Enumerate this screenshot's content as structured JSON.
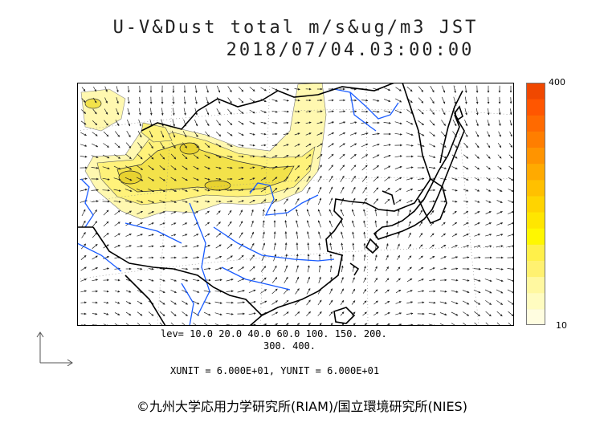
{
  "header": {
    "line1": "U-V&Dust total m/s&ug/m3 JST",
    "line2": "2018/07/04.03:00:00"
  },
  "colorbar": {
    "max_label": "400",
    "min_label": "10",
    "colors": [
      "#fffde0",
      "#fffcc0",
      "#fff8a0",
      "#fff170",
      "#fff04a",
      "#fff700",
      "#ffe600",
      "#ffd400",
      "#ffc000",
      "#ffaa00",
      "#ff9400",
      "#ff7e00",
      "#ff6a00",
      "#ff5600",
      "#f04800"
    ]
  },
  "levels": {
    "line1": "lev= 10.0 20.0 40.0 60.0 100. 150. 200.",
    "line2": "300. 400."
  },
  "units": "XUNIT = 6.000E+01, YUNIT = 6.000E+01",
  "copyright": "©九州大学応用力学研究所(RIAM)/国立環境研究所(NIES)",
  "map_colors": {
    "coast": "#000000",
    "river": "#1a5cff",
    "dust_light": "#fff8b0",
    "dust_mid": "#fff27a",
    "dust_high": "#f3e24a",
    "frame": "#000000"
  }
}
